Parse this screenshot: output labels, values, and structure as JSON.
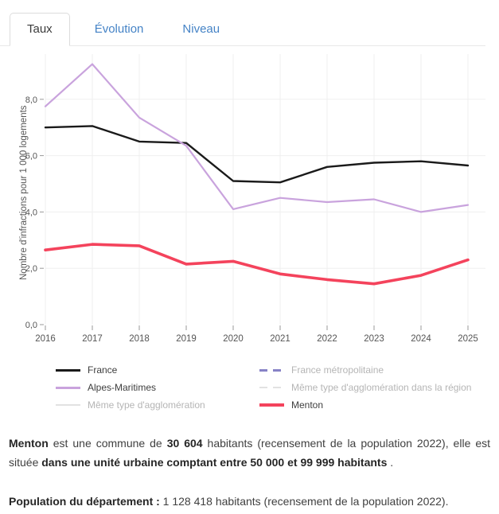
{
  "tabs": {
    "items": [
      {
        "label": "Taux",
        "active": true
      },
      {
        "label": "Évolution",
        "active": false
      },
      {
        "label": "Niveau",
        "active": false
      }
    ]
  },
  "chart_data": {
    "type": "line",
    "title": "",
    "xlabel": "",
    "ylabel": "Nombre d'infractions pour 1 000 logements",
    "x": [
      2016,
      2017,
      2018,
      2019,
      2020,
      2021,
      2022,
      2023,
      2024,
      2025
    ],
    "xtick_labels": [
      "2016",
      "2017",
      "2018",
      "2019",
      "2020",
      "2021",
      "2022",
      "2023",
      "2024",
      "2025"
    ],
    "ylim": [
      0,
      9.8
    ],
    "yticks": [
      0,
      2,
      4,
      6,
      8
    ],
    "ytick_labels": [
      "0,0",
      "2,0",
      "4,0",
      "6,0",
      "8,0"
    ],
    "grid": true,
    "series": [
      {
        "name": "France",
        "color": "#1a1a1a",
        "width": 2.4,
        "dash": null,
        "values": [
          7.0,
          7.05,
          6.5,
          6.45,
          5.1,
          5.05,
          5.6,
          5.75,
          5.8,
          5.65
        ]
      },
      {
        "name": "Alpes-Maritimes",
        "color": "#c9a3dd",
        "width": 2.2,
        "dash": null,
        "values": [
          7.75,
          9.25,
          7.35,
          6.35,
          4.1,
          4.5,
          4.35,
          4.45,
          4.0,
          4.25
        ]
      },
      {
        "name": "Menton",
        "color": "#f4435c",
        "width": 3.6,
        "dash": null,
        "values": [
          2.65,
          2.85,
          2.8,
          2.15,
          2.25,
          1.8,
          1.6,
          1.45,
          1.75,
          2.3
        ]
      }
    ],
    "legend": {
      "position": "bottom",
      "columns": [
        [
          {
            "label": "France",
            "color": "#1a1a1a",
            "style": "solid",
            "thickness": 3,
            "disabled": false
          },
          {
            "label": "Alpes-Maritimes",
            "color": "#c9a3dd",
            "style": "solid",
            "thickness": 3,
            "disabled": false
          },
          {
            "label": "Même type d'agglomération",
            "color": "#e2e2e2",
            "style": "solid",
            "thickness": 2,
            "disabled": true
          }
        ],
        [
          {
            "label": "France métropolitaine",
            "color": "#8783c6",
            "style": "dashed",
            "thickness": 3,
            "disabled": true
          },
          {
            "label": "Même type d'agglomération dans la région",
            "color": "#e2e2e2",
            "style": "dashed",
            "thickness": 2,
            "disabled": true
          },
          {
            "label": "Menton",
            "color": "#f4435c",
            "style": "solid",
            "thickness": 4,
            "disabled": false
          }
        ]
      ]
    },
    "colors": {
      "grid": "#efefef",
      "axis_text": "#555555",
      "tick": "#999999"
    }
  },
  "paragraphs": [
    {
      "segments": [
        {
          "text": "Menton",
          "bold": true
        },
        {
          "text": " est une commune de ",
          "bold": false
        },
        {
          "text": "30 604",
          "bold": true
        },
        {
          "text": " habitants (recensement de la population 2022), elle est située ",
          "bold": false
        },
        {
          "text": "dans une unité urbaine comptant entre 50 000 et 99 999 habitants",
          "bold": true
        },
        {
          "text": " .",
          "bold": false
        }
      ]
    },
    {
      "segments": [
        {
          "text": "Population du département :",
          "bold": true
        },
        {
          "text": " 1 128 418 habitants (recensement de la population 2022).",
          "bold": false
        }
      ]
    }
  ]
}
